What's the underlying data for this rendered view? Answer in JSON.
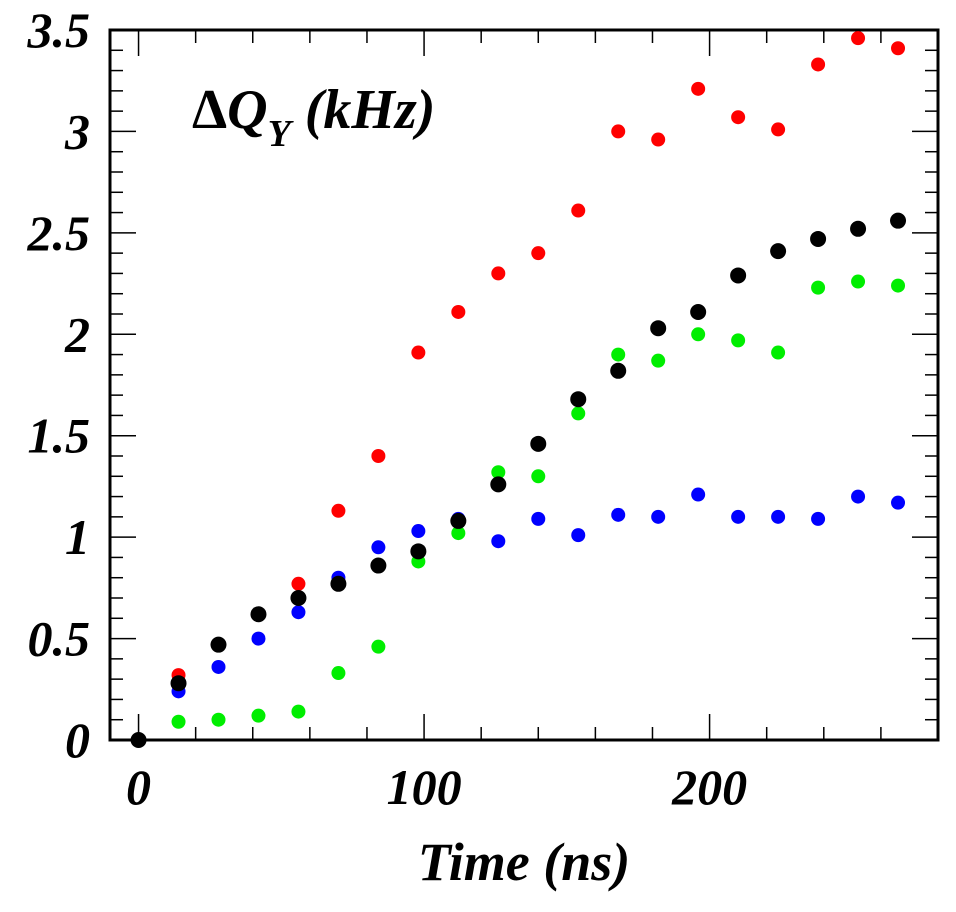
{
  "chart_data": {
    "type": "scatter",
    "title": "",
    "annotation": {
      "delta": "Δ",
      "q": "Q",
      "sub": "Y",
      "unit": " (kHz)"
    },
    "xlabel": "Time (ns)",
    "ylabel": "",
    "xlim": [
      -10,
      280
    ],
    "ylim": [
      0,
      3.5
    ],
    "x_ticks": [
      0,
      100,
      200
    ],
    "y_ticks": [
      0,
      0.5,
      1,
      1.5,
      2,
      2.5,
      3,
      3.5
    ],
    "x_tick_labels": [
      "0",
      "100",
      "200"
    ],
    "y_tick_labels": [
      "0",
      "0.5",
      "1",
      "1.5",
      "2",
      "2.5",
      "3",
      "3.5"
    ],
    "x": [
      0,
      14,
      28,
      42,
      56,
      70,
      84,
      98,
      112,
      126,
      140,
      154,
      168,
      182,
      196,
      210,
      224,
      238,
      252,
      266
    ],
    "series": [
      {
        "color": "#ff0000",
        "marker_size": 7,
        "values": [
          null,
          0.32,
          0.47,
          0.62,
          0.77,
          1.13,
          1.4,
          1.91,
          2.11,
          2.3,
          2.4,
          2.61,
          3.0,
          2.96,
          3.21,
          3.07,
          3.01,
          3.33,
          3.46,
          3.41
        ]
      },
      {
        "color": "#0000ff",
        "marker_size": 7,
        "values": [
          null,
          0.24,
          0.36,
          0.5,
          0.63,
          0.8,
          0.95,
          1.03,
          1.09,
          0.98,
          1.09,
          1.01,
          1.11,
          1.1,
          1.21,
          1.1,
          1.1,
          1.09,
          1.2,
          1.17
        ]
      },
      {
        "color": "#00ee00",
        "marker_size": 7,
        "values": [
          null,
          0.09,
          0.1,
          0.12,
          0.14,
          0.33,
          0.46,
          0.88,
          1.02,
          1.32,
          1.3,
          1.61,
          1.9,
          1.87,
          2.0,
          1.97,
          1.91,
          2.23,
          2.26,
          2.24
        ]
      },
      {
        "color": "#000000",
        "marker_size": 8,
        "values": [
          0.0,
          0.28,
          0.47,
          0.62,
          0.7,
          0.77,
          0.86,
          0.93,
          1.08,
          1.26,
          1.46,
          1.68,
          1.82,
          2.03,
          2.11,
          2.29,
          2.41,
          2.47,
          2.52,
          2.56
        ]
      }
    ],
    "grid": false,
    "legend": "none"
  }
}
